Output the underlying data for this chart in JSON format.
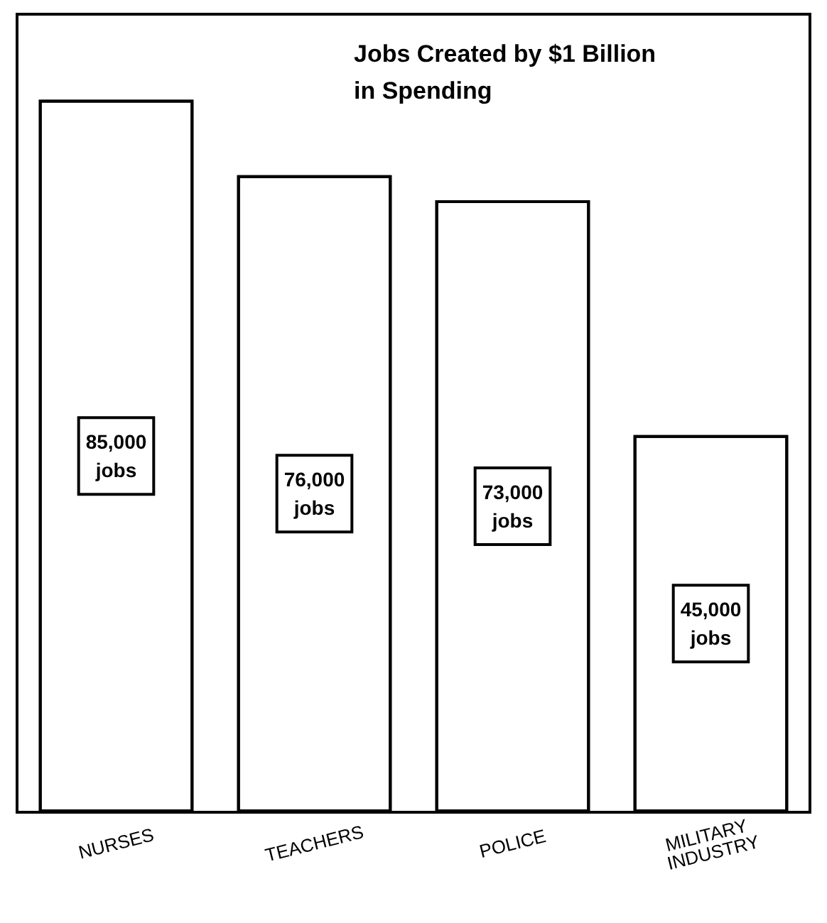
{
  "chart_data": {
    "type": "bar",
    "title": "Jobs Created by $1 Billion in Spending",
    "categories": [
      "NURSES",
      "TEACHERS",
      "POLICE",
      "MILITARY INDUSTRY"
    ],
    "values": [
      85000,
      76000,
      73000,
      45000
    ],
    "value_labels": [
      "85,000 jobs",
      "76,000 jobs",
      "73,000 jobs",
      "45,000 jobs"
    ],
    "color": "#ffffff"
  }
}
